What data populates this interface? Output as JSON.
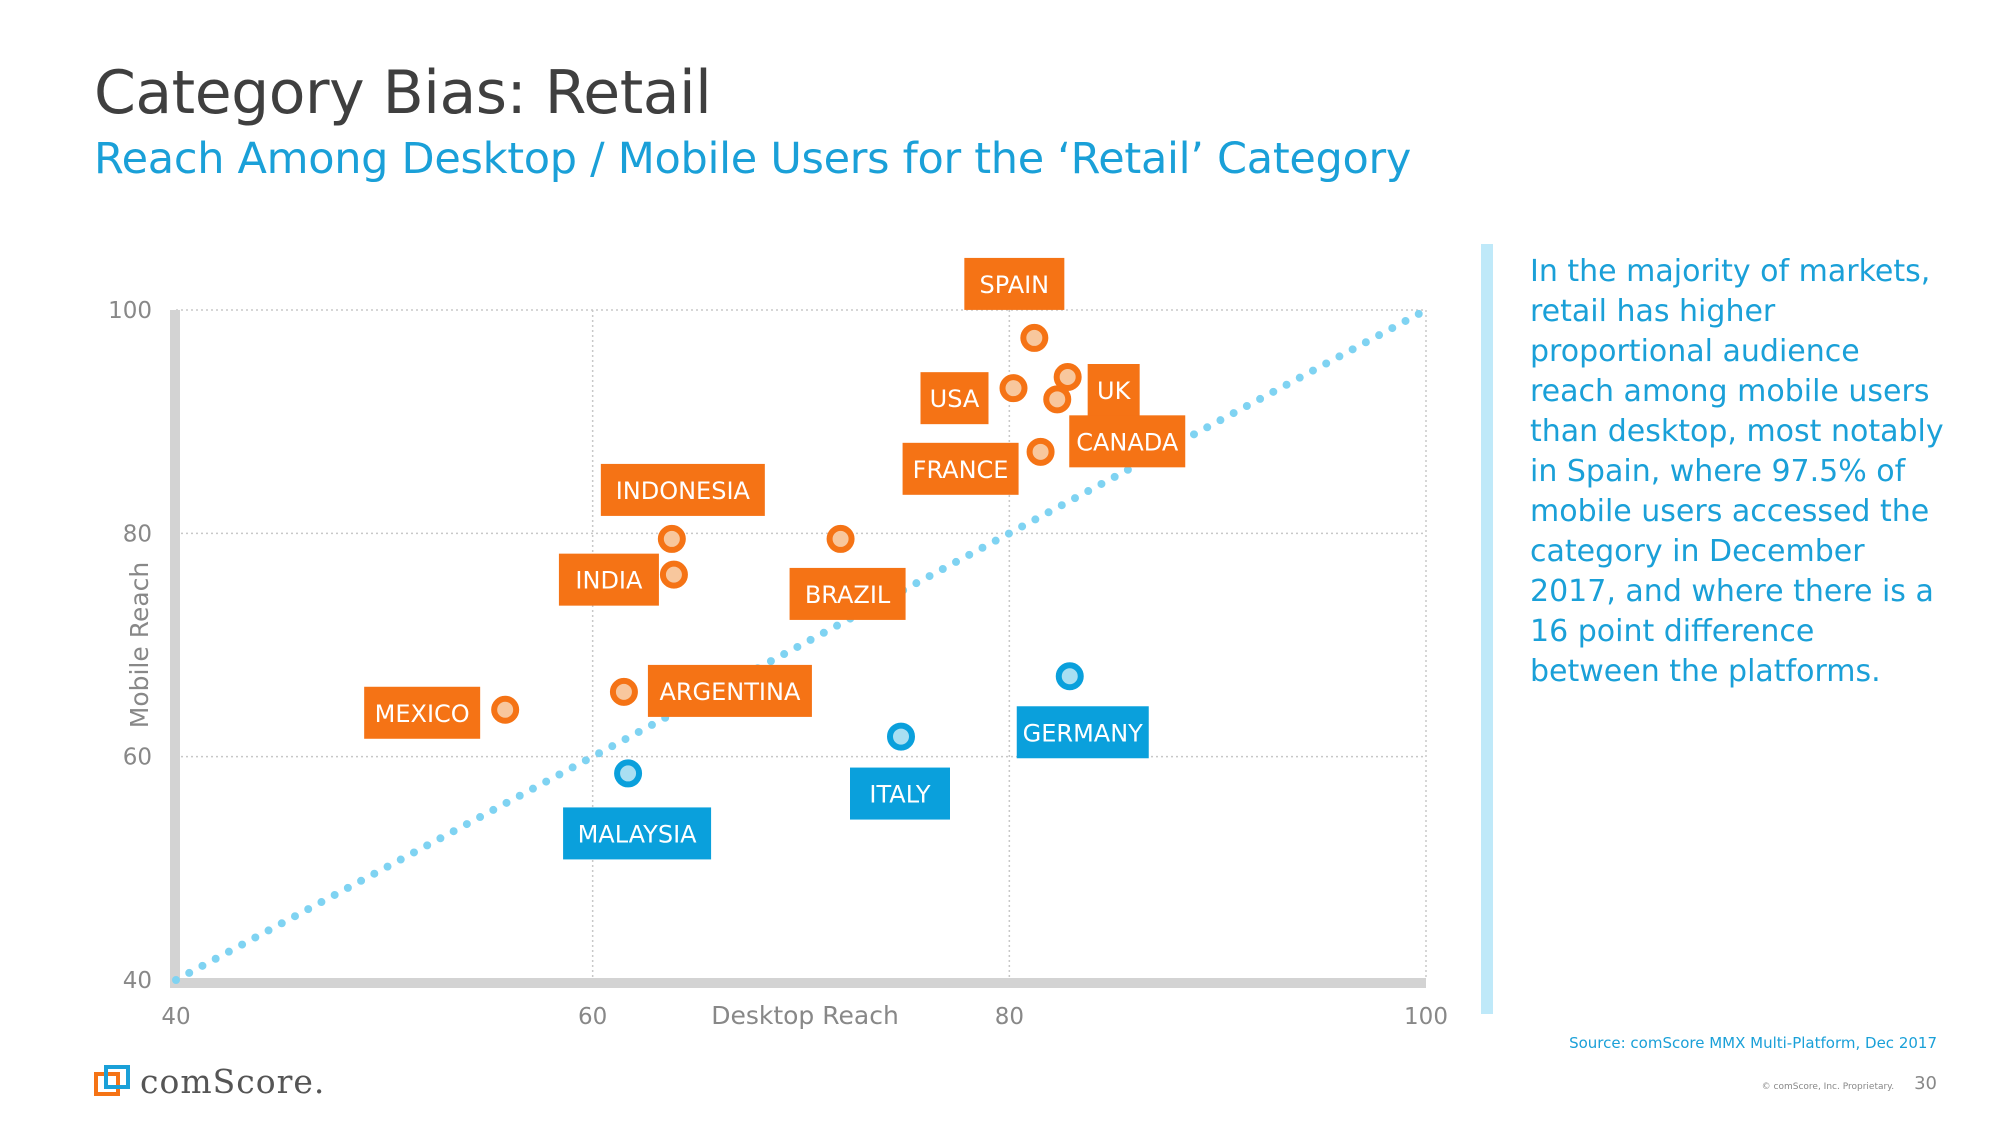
{
  "slide": {
    "title": "Category Bias: Retail",
    "subtitle": "Reach Among Desktop / Mobile Users for the ‘Retail’ Category",
    "note": "In the majority of markets, retail has higher proportional audience reach among mobile users than desktop, most notably in Spain, where 97.5% of mobile users accessed the category in December 2017, and where there is a 16 point difference between the platforms.",
    "source": "Source: comScore MMX Multi-Platform, Dec 2017",
    "copyright": "© comScore, Inc. Proprietary.",
    "page_number": "30",
    "logo_text": "comScore."
  },
  "colors": {
    "orange": "#f57315",
    "blue": "#0aa0dc",
    "orange_fill": "#f8c79d",
    "blue_fill": "#a9dff2",
    "diagonal": "#7fd3f2",
    "title": "#3f3f3f",
    "accent": "#1aa0d8"
  },
  "chart_data": {
    "type": "scatter",
    "xlabel": "Desktop Reach",
    "ylabel": "Mobile Reach",
    "xlim": [
      40,
      100
    ],
    "ylim": [
      40,
      100
    ],
    "xticks": [
      "40",
      "60",
      "80",
      "100"
    ],
    "yticks": [
      "40",
      "60",
      "80",
      "100"
    ],
    "reference_line": "y = x",
    "points": [
      {
        "label": "SPAIN",
        "x": 81.2,
        "y": 97.5,
        "group": "mobile-higher"
      },
      {
        "label": "UK",
        "x": 82.8,
        "y": 94.0,
        "group": "mobile-higher"
      },
      {
        "label": "USA",
        "x": 80.2,
        "y": 93.0,
        "group": "mobile-higher"
      },
      {
        "label": "CANADA",
        "x": 82.3,
        "y": 92.0,
        "group": "mobile-higher"
      },
      {
        "label": "FRANCE",
        "x": 81.5,
        "y": 87.3,
        "group": "mobile-higher"
      },
      {
        "label": "INDONESIA",
        "x": 63.8,
        "y": 79.5,
        "group": "mobile-higher"
      },
      {
        "label": "INDIA",
        "x": 63.9,
        "y": 76.3,
        "group": "mobile-higher"
      },
      {
        "label": "BRAZIL",
        "x": 71.9,
        "y": 79.5,
        "group": "mobile-higher"
      },
      {
        "label": "MEXICO",
        "x": 55.8,
        "y": 64.2,
        "group": "mobile-higher"
      },
      {
        "label": "ARGENTINA",
        "x": 61.5,
        "y": 65.8,
        "group": "mobile-higher"
      },
      {
        "label": "MALAYSIA",
        "x": 61.7,
        "y": 58.5,
        "group": "desktop-higher"
      },
      {
        "label": "ITALY",
        "x": 74.8,
        "y": 61.8,
        "group": "desktop-higher"
      },
      {
        "label": "GERMANY",
        "x": 82.9,
        "y": 67.2,
        "group": "desktop-higher"
      }
    ]
  }
}
